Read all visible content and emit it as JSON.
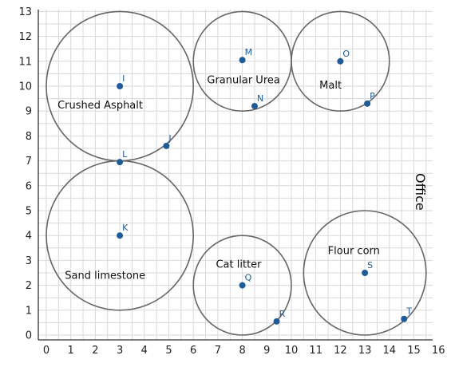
{
  "x_ticks": [
    "0",
    "1",
    "2",
    "3",
    "4",
    "5",
    "6",
    "7",
    "8",
    "9",
    "10",
    "11",
    "12",
    "13",
    "14",
    "15",
    "16"
  ],
  "y_ticks": [
    "0",
    "1",
    "2",
    "3",
    "4",
    "5",
    "6",
    "7",
    "8",
    "9",
    "10",
    "11",
    "12",
    "13"
  ],
  "circles": [
    {
      "cx": 3,
      "cy": 10,
      "r": 3
    },
    {
      "cx": 8,
      "cy": 11,
      "r": 2
    },
    {
      "cx": 12,
      "cy": 11,
      "r": 2
    },
    {
      "cx": 3,
      "cy": 4,
      "r": 3
    },
    {
      "cx": 8,
      "cy": 2,
      "r": 2
    },
    {
      "cx": 13,
      "cy": 2.5,
      "r": 2.5
    }
  ],
  "points": [
    {
      "label": "I",
      "x": 3,
      "y": 10
    },
    {
      "label": "J",
      "x": 4.9,
      "y": 7.6
    },
    {
      "label": "L",
      "x": 3,
      "y": 6.95
    },
    {
      "label": "M",
      "x": 8,
      "y": 11.05
    },
    {
      "label": "N",
      "x": 8.5,
      "y": 9.2
    },
    {
      "label": "O",
      "x": 12,
      "y": 11
    },
    {
      "label": "P",
      "x": 13.1,
      "y": 9.3
    },
    {
      "label": "K",
      "x": 3,
      "y": 4
    },
    {
      "label": "Q",
      "x": 8,
      "y": 2
    },
    {
      "label": "R",
      "x": 9.4,
      "y": 0.55
    },
    {
      "label": "S",
      "x": 13,
      "y": 2.5
    },
    {
      "label": "T",
      "x": 14.6,
      "y": 0.65
    }
  ],
  "region_labels": [
    {
      "text": "Crushed Asphalt",
      "x": 2.2,
      "y": 9.25
    },
    {
      "text": "Granular Urea",
      "x": 8.05,
      "y": 10.25
    },
    {
      "text": "Malt",
      "x": 11.6,
      "y": 10.05
    },
    {
      "text": "Sand limestone",
      "x": 2.4,
      "y": 2.4
    },
    {
      "text": "Cat litter",
      "x": 7.85,
      "y": 2.85
    },
    {
      "text": "Flour corn",
      "x": 12.55,
      "y": 3.4
    }
  ],
  "office_label": "Office"
}
